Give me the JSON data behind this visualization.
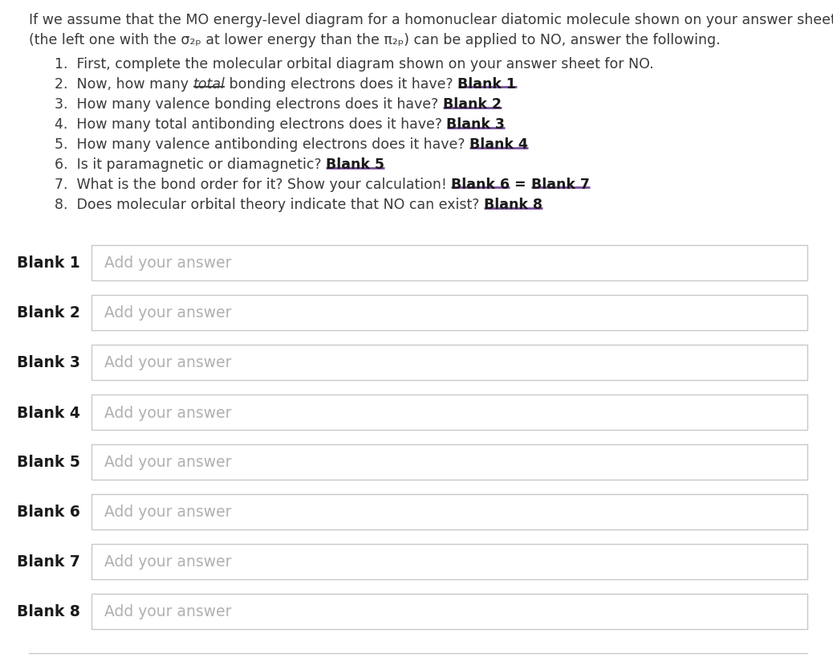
{
  "bg_color": "#ffffff",
  "text_color": "#3a3a3a",
  "bold_color": "#1a1a1a",
  "purple_color": "#7b4f9e",
  "placeholder_color": "#b0b0b0",
  "box_border_color": "#c8c8c8",
  "box_fill_color": "#ffffff",
  "label_bold_color": "#1a1a1a",
  "intro_line1": "If we assume that the MO energy-level diagram for a homonuclear diatomic molecule shown on your answer sheet",
  "intro_line2": "(the left one with the σ₂ₚ at lower energy than the π₂ₚ) can be applied to NO, answer the following.",
  "item1": "1.  First, complete the molecular orbital diagram shown on your answer sheet for NO.",
  "item2_pre": "2.  Now, how many ",
  "item2_ul": "total",
  "item2_post": " bonding electrons does it have?",
  "item2_blank": "Blank 1",
  "item3_pre": "3.  How many valence bonding electrons does it have?",
  "item3_blank": "Blank 2",
  "item4_pre": "4.  How many total antibonding electrons does it have?",
  "item4_blank": "Blank 3",
  "item5_pre": "5.  How many valence antibonding electrons does it have?",
  "item5_blank": "Blank 4",
  "item6_pre": "6.  Is it paramagnetic or diamagnetic?",
  "item6_blank": "Blank 5",
  "item7_pre": "7.  What is the bond order for it? Show your calculation!",
  "item7_blank1": "Blank 6",
  "item7_eq": " = ",
  "item7_blank2": "Blank 7",
  "item8_pre": "8.  Does molecular orbital theory indicate that NO can exist?",
  "item8_blank": "Blank 8",
  "blanks": [
    "Blank 1",
    "Blank 2",
    "Blank 3",
    "Blank 4",
    "Blank 5",
    "Blank 6",
    "Blank 7",
    "Blank 8"
  ],
  "placeholder_text": "Add your answer",
  "bottom_line_color": "#c8c8c8",
  "fig_width": 10.38,
  "fig_height": 8.2,
  "dpi": 100
}
